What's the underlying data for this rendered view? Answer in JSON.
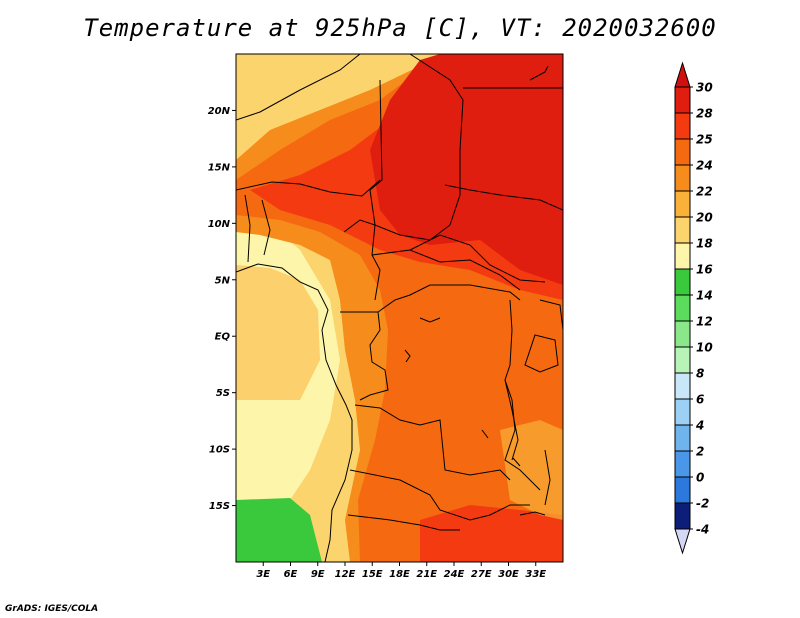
{
  "title": "Temperature at 925hPa [C], VT: 2020032600",
  "credit": "GrADS: IGES/COLA",
  "map": {
    "lon_range": [
      0,
      36
    ],
    "lat_range": [
      -20,
      25
    ],
    "lat_ticks": [
      {
        "value": 20,
        "label": "20N"
      },
      {
        "value": 15,
        "label": "15N"
      },
      {
        "value": 10,
        "label": "10N"
      },
      {
        "value": 5,
        "label": "5N"
      },
      {
        "value": 0,
        "label": "EQ"
      },
      {
        "value": -5,
        "label": "5S"
      },
      {
        "value": -10,
        "label": "10S"
      },
      {
        "value": -15,
        "label": "15S"
      }
    ],
    "lon_ticks": [
      {
        "value": 3,
        "label": "3E"
      },
      {
        "value": 6,
        "label": "6E"
      },
      {
        "value": 9,
        "label": "9E"
      },
      {
        "value": 12,
        "label": "12E"
      },
      {
        "value": 15,
        "label": "15E"
      },
      {
        "value": 18,
        "label": "18E"
      },
      {
        "value": 21,
        "label": "21E"
      },
      {
        "value": 24,
        "label": "24E"
      },
      {
        "value": 27,
        "label": "27E"
      },
      {
        "value": 30,
        "label": "30E"
      },
      {
        "value": 33,
        "label": "33E"
      }
    ]
  },
  "colorbar": {
    "levels": [
      {
        "label": "30",
        "color": "#e01e10"
      },
      {
        "label": "28",
        "color": "#f43a10"
      },
      {
        "label": "25",
        "color": "#f56a10"
      },
      {
        "label": "24",
        "color": "#f68c1b"
      },
      {
        "label": "22",
        "color": "#f9b13a"
      },
      {
        "label": "20",
        "color": "#fbd46e"
      },
      {
        "label": "18",
        "color": "#fdf5aa"
      },
      {
        "label": "16",
        "color": "#3ac83c"
      },
      {
        "label": "14",
        "color": "#5cdc5c"
      },
      {
        "label": "12",
        "color": "#8ae88a"
      },
      {
        "label": "10",
        "color": "#b8f4b8"
      },
      {
        "label": "8",
        "color": "#c8e8fa"
      },
      {
        "label": "6",
        "color": "#9cd0f4"
      },
      {
        "label": "4",
        "color": "#70b4ee"
      },
      {
        "label": "2",
        "color": "#4a96e8"
      },
      {
        "label": "0",
        "color": "#2c78dc"
      },
      {
        "label": "-2",
        "color": "#1e5ac8"
      },
      {
        "label": "-4",
        "color": "#1840a8"
      }
    ],
    "top_color": "#d01010",
    "bottom_color": "#0c1e78",
    "bottom_arrow_color": "#d4d8f4"
  }
}
